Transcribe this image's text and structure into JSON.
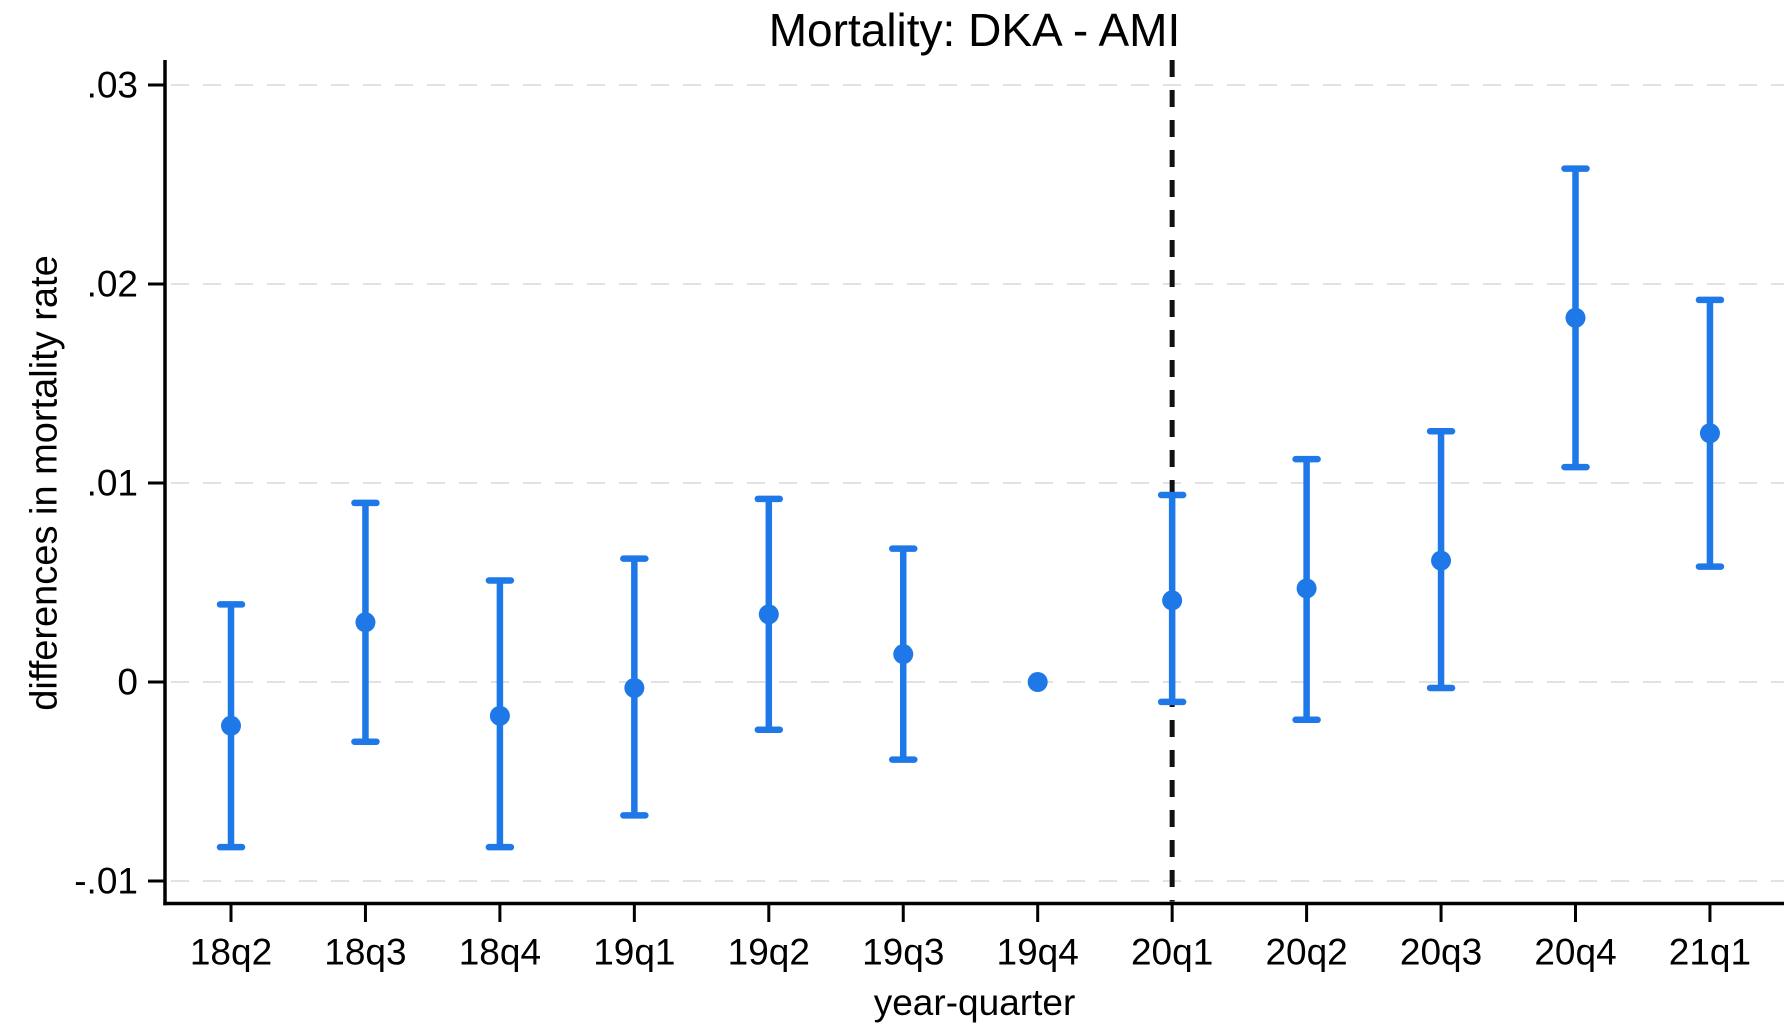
{
  "chart_data": {
    "type": "scatter",
    "variant": "coefficient-plot-with-confidence-intervals",
    "title": "Mortality: DKA - AMI",
    "xlabel": "year-quarter",
    "ylabel": "differences in mortality rate",
    "categories": [
      "18q2",
      "18q3",
      "18q4",
      "19q1",
      "19q2",
      "19q3",
      "19q4",
      "20q1",
      "20q2",
      "20q3",
      "20q4",
      "21q1"
    ],
    "series": [
      {
        "name": "difference in mortality rate (DKA - AMI)",
        "estimates": [
          -0.0022,
          0.003,
          -0.0017,
          -0.0003,
          0.0034,
          0.0014,
          0.0,
          0.0041,
          0.0047,
          0.0061,
          0.0183,
          0.0125
        ],
        "ci_low": [
          -0.0083,
          -0.003,
          -0.0083,
          -0.0067,
          -0.0024,
          -0.0039,
          null,
          -0.001,
          -0.0019,
          -0.0003,
          0.0108,
          0.0058
        ],
        "ci_high": [
          0.0039,
          0.009,
          0.0051,
          0.0062,
          0.0092,
          0.0067,
          null,
          0.0094,
          0.0112,
          0.0126,
          0.0258,
          0.0192
        ]
      }
    ],
    "reference_category": "19q4",
    "vline_at_category": "20q1",
    "yticks": [
      -0.01,
      0,
      0.01,
      0.02,
      0.03
    ],
    "ytick_labels": [
      "-.01",
      "0",
      ".01",
      ".02",
      ".03"
    ],
    "ylim": [
      -0.0112,
      0.0312
    ],
    "grid": true,
    "gridline_style": "dashed",
    "legend": "none",
    "colors": {
      "marker": "#1e78e8",
      "vline": "#111111",
      "gridline": "#e2e2e2",
      "axis": "#000000",
      "text": "#000000",
      "background": "#ffffff"
    }
  }
}
